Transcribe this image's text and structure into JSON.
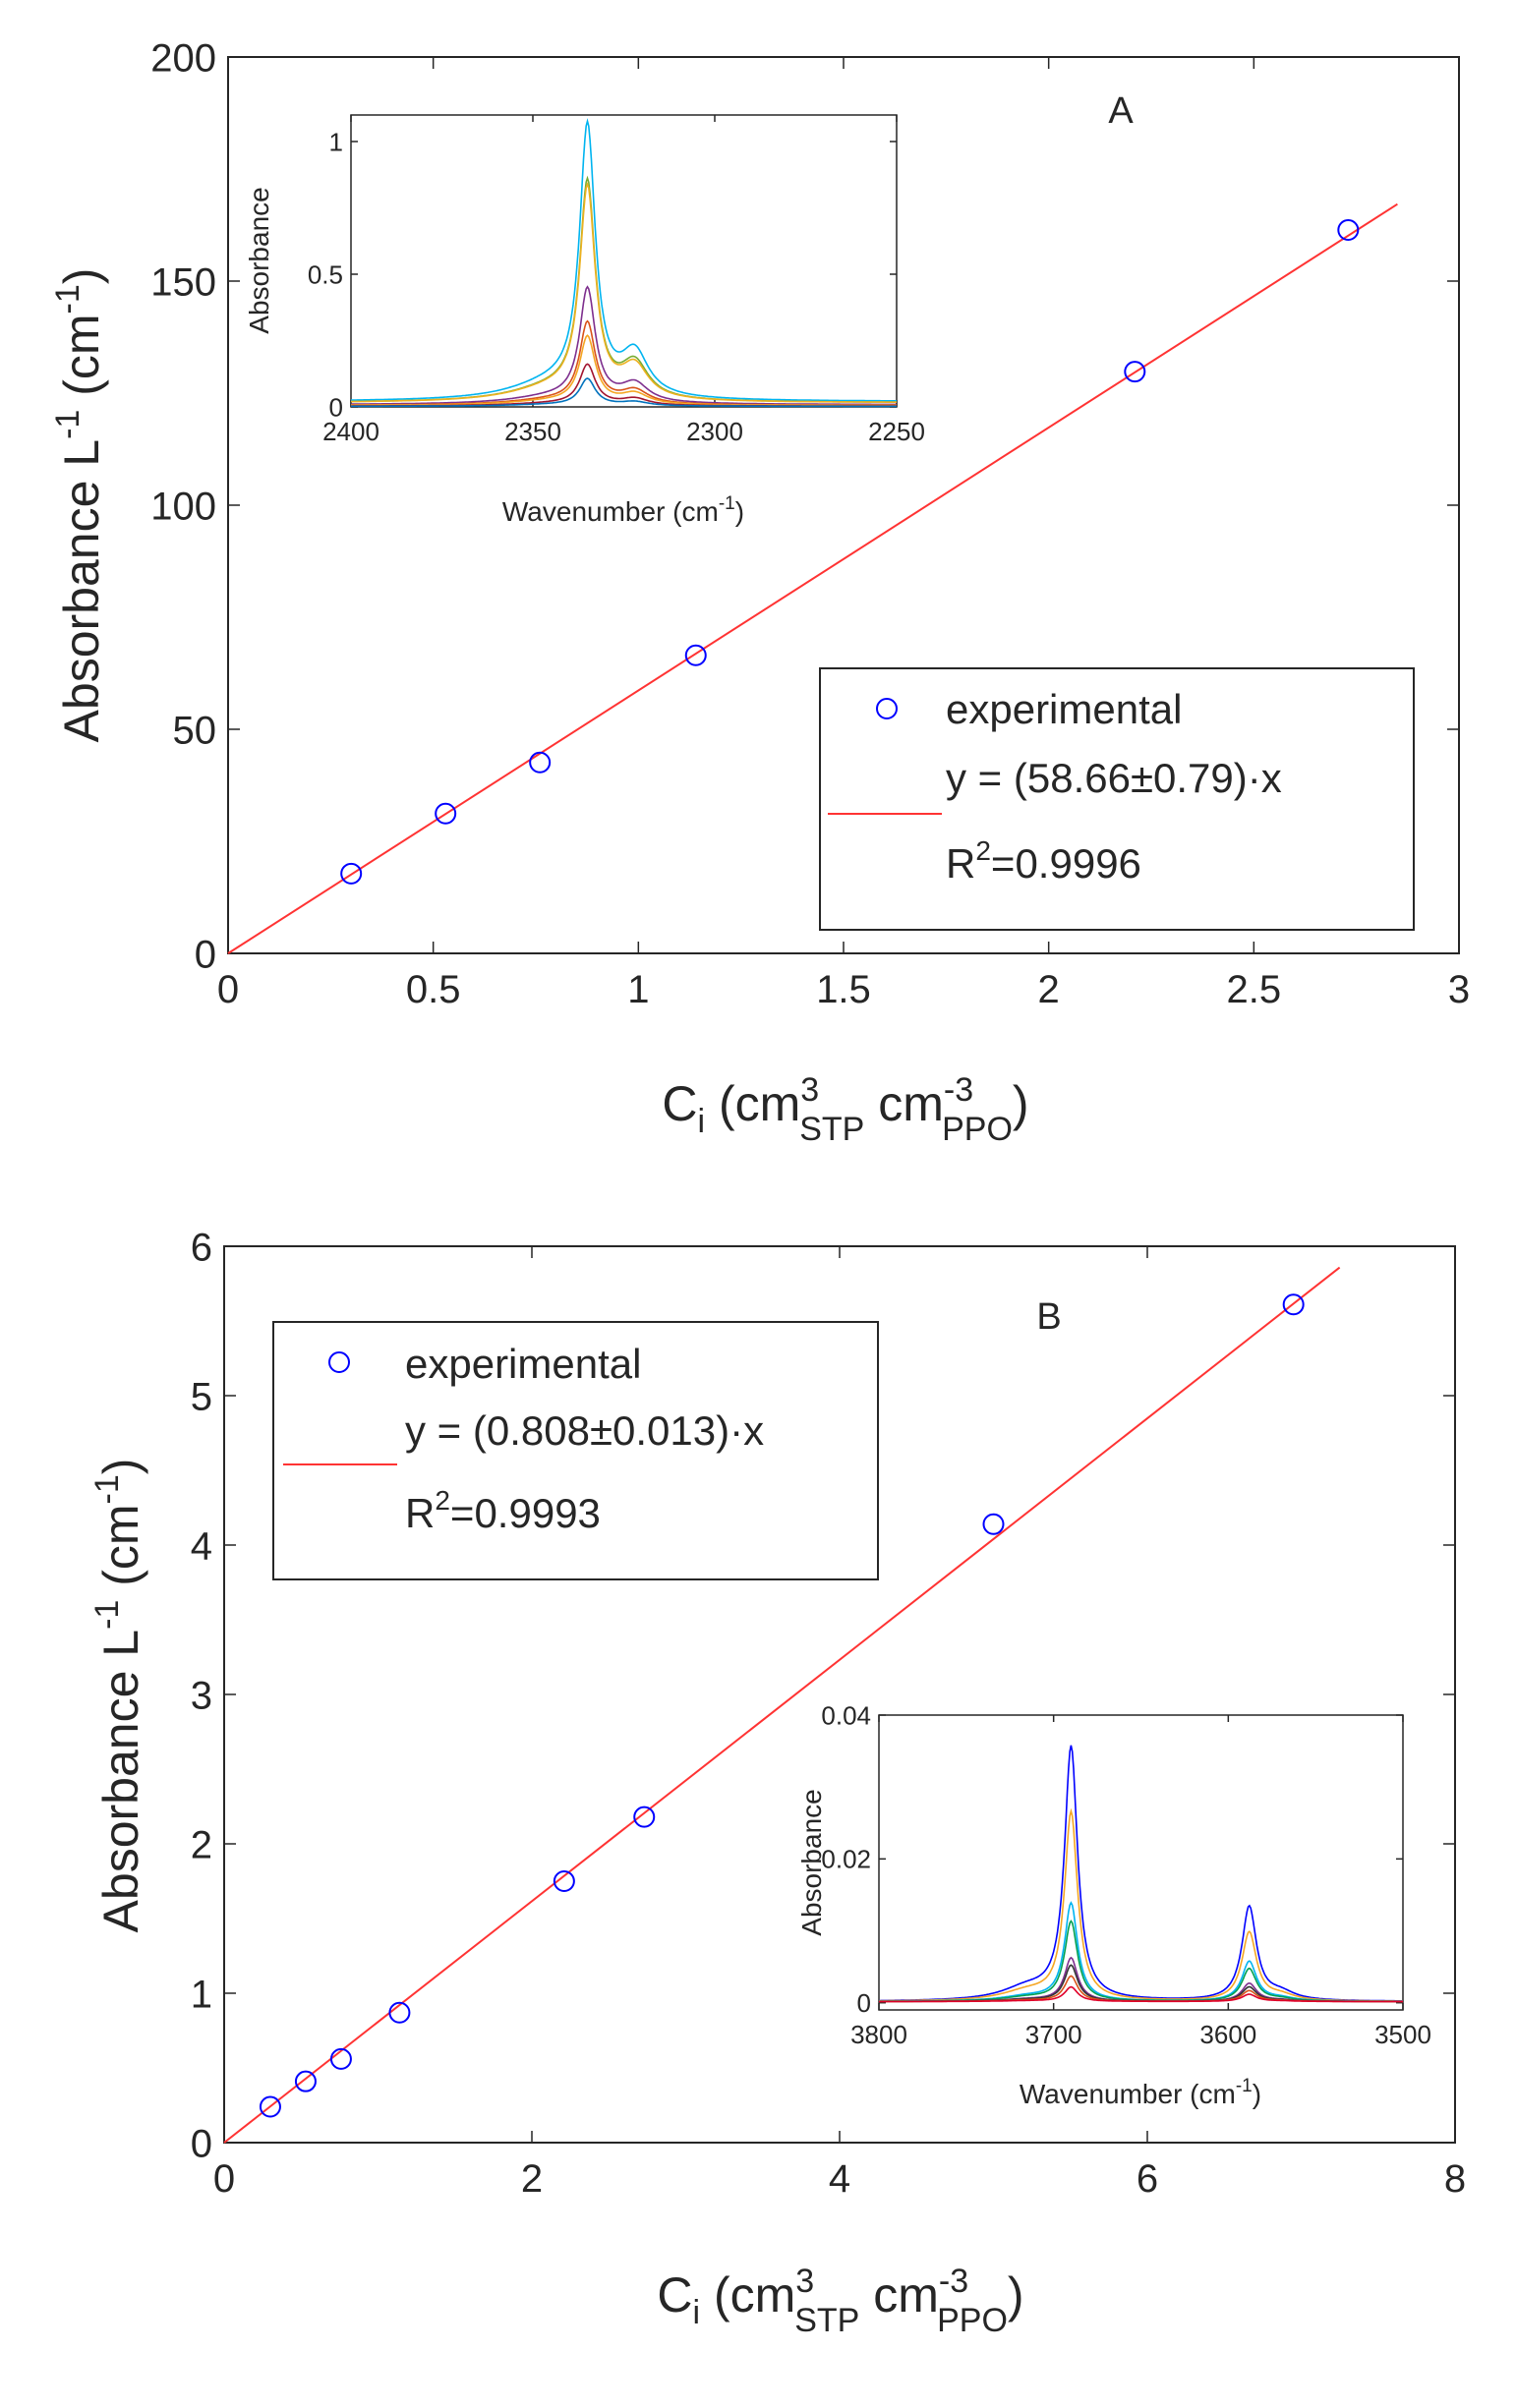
{
  "chart_data": [
    {
      "id": "A",
      "type": "scatter",
      "panel_label": "A",
      "xlabel": {
        "base": "C",
        "sub1": "i",
        "mid1": " (cm",
        "sup2": "3",
        "sub2": "STP",
        "mid2": " cm",
        "sup3": "-3",
        "sub3": "PPO",
        "end": ")"
      },
      "ylabel": {
        "base": "Absorbance L",
        "sup": "-1",
        "end": " (cm",
        "sup2": "-1",
        "end2": ")"
      },
      "xlim": [
        0,
        3
      ],
      "ylim": [
        0,
        200
      ],
      "xticks": [
        0,
        0.5,
        1,
        1.5,
        2,
        2.5,
        3
      ],
      "xtick_labels": [
        "0",
        "0.5",
        "1",
        "1.5",
        "2",
        "2.5",
        "3"
      ],
      "yticks": [
        0,
        50,
        100,
        150,
        200
      ],
      "ytick_labels": [
        "0",
        "50",
        "100",
        "150",
        "200"
      ],
      "series": [
        {
          "name": "experimental",
          "kind": "markers",
          "x": [
            0.3,
            0.53,
            0.76,
            1.14,
            2.21,
            2.73
          ],
          "y": [
            17.8,
            31.2,
            42.6,
            66.5,
            129.8,
            161.4
          ]
        },
        {
          "name": "y = (58.66±0.79)·x",
          "kind": "line",
          "slope": 58.66,
          "x": [
            0,
            2.85
          ]
        }
      ],
      "legend": {
        "position": "right-middle",
        "entries": [
          "experimental",
          "y = (58.66±0.79)·x",
          "R^2=0.9996"
        ],
        "r2_base": "R",
        "r2_sup": "2",
        "r2_rest": "=0.9996"
      },
      "inset": {
        "type": "line",
        "xlabel": {
          "base": "Wavenumber (cm",
          "sup": "-1",
          "end": ")"
        },
        "ylabel": "Absorbance",
        "xlim": [
          2400,
          2250
        ],
        "ylim": [
          0,
          1.1
        ],
        "xticks": [
          2400,
          2350,
          2300,
          2250
        ],
        "xtick_labels": [
          "2400",
          "2350",
          "2300",
          "2250"
        ],
        "yticks": [
          0,
          0.5,
          1
        ],
        "ytick_labels": [
          "0",
          "0.5",
          "1"
        ],
        "peaks": [
          {
            "center": 2335,
            "width": 2.6,
            "base": 0.02
          },
          {
            "center": 2322,
            "width": 4.5,
            "base": 0.005
          }
        ],
        "series": [
          {
            "color": "#00b4f0",
            "peak": 1.0,
            "shoulder": 0.16
          },
          {
            "color": "#77ac30",
            "peak": 0.8,
            "shoulder": 0.13
          },
          {
            "color": "#edb120",
            "peak": 0.78,
            "shoulder": 0.12
          },
          {
            "color": "#7e2f8e",
            "peak": 0.42,
            "shoulder": 0.07
          },
          {
            "color": "#d95319",
            "peak": 0.3,
            "shoulder": 0.05
          },
          {
            "color": "#f5a623",
            "peak": 0.25,
            "shoulder": 0.04
          },
          {
            "color": "#a2142f",
            "peak": 0.15,
            "shoulder": 0.025
          },
          {
            "color": "#0072bd",
            "peak": 0.1,
            "shoulder": 0.015
          }
        ]
      }
    },
    {
      "id": "B",
      "type": "scatter",
      "panel_label": "B",
      "xlabel": {
        "base": "C",
        "sub1": "i",
        "mid1": " (cm",
        "sup2": "3",
        "sub2": "STP",
        "mid2": " cm",
        "sup3": "-3",
        "sub3": "PPO",
        "end": ")"
      },
      "ylabel": {
        "base": "Absorbance L",
        "sup": "-1",
        "end": " (cm",
        "sup2": "-1",
        "end2": ")"
      },
      "xlim": [
        0,
        8
      ],
      "ylim": [
        0,
        6
      ],
      "xticks": [
        0,
        2,
        4,
        6,
        8
      ],
      "xtick_labels": [
        "0",
        "2",
        "4",
        "6",
        "8"
      ],
      "yticks": [
        0,
        1,
        2,
        3,
        4,
        5,
        6
      ],
      "ytick_labels": [
        "0",
        "1",
        "2",
        "3",
        "4",
        "5",
        "6"
      ],
      "series": [
        {
          "name": "experimental",
          "kind": "markers",
          "x": [
            0.3,
            0.53,
            0.76,
            1.14,
            2.21,
            2.73,
            5.0,
            6.95
          ],
          "y": [
            0.24,
            0.41,
            0.56,
            0.87,
            1.75,
            2.18,
            4.14,
            5.61
          ]
        },
        {
          "name": "y = (0.808±0.013)·x",
          "kind": "line",
          "slope": 0.808,
          "x": [
            0,
            7.25
          ]
        }
      ],
      "legend": {
        "position": "top-left",
        "entries": [
          "experimental",
          "y = (0.808±0.013)·x",
          "R^2=0.9993"
        ],
        "r2_base": "R",
        "r2_sup": "2",
        "r2_rest": "=0.9993"
      },
      "inset": {
        "type": "line",
        "xlabel": {
          "base": "Wavenumber (cm",
          "sup": "-1",
          "end": ")"
        },
        "ylabel": "Absorbance",
        "xlim": [
          3800,
          3500
        ],
        "ylim": [
          -0.001,
          0.04
        ],
        "xticks": [
          3800,
          3700,
          3600,
          3500
        ],
        "xtick_labels": [
          "3800",
          "3700",
          "3600",
          "3500"
        ],
        "yticks": [
          0,
          0.02,
          0.04
        ],
        "ytick_labels": [
          "0",
          "0.02",
          "0.04"
        ],
        "peaks": [
          {
            "center": 3690,
            "width": 4.5,
            "base": 0.0008
          },
          {
            "center": 3588,
            "width": 5.0,
            "base": 0.0005
          }
        ],
        "series": [
          {
            "color": "#0000ff",
            "peak": 0.035,
            "second": 0.013
          },
          {
            "color": "#f5a623",
            "peak": 0.026,
            "second": 0.0095
          },
          {
            "color": "#00b4f0",
            "peak": 0.0135,
            "second": 0.0055
          },
          {
            "color": "#00a050",
            "peak": 0.011,
            "second": 0.0045
          },
          {
            "color": "#7e2f8e",
            "peak": 0.006,
            "second": 0.0025
          },
          {
            "color": "#333333",
            "peak": 0.005,
            "second": 0.002
          },
          {
            "color": "#d95319",
            "peak": 0.0035,
            "second": 0.0015
          },
          {
            "color": "#e0002a",
            "peak": 0.002,
            "second": 0.001
          }
        ]
      }
    }
  ],
  "colors": {
    "marker": "#0000ff",
    "fit_line": "#ff3333",
    "axis": "#262626"
  }
}
